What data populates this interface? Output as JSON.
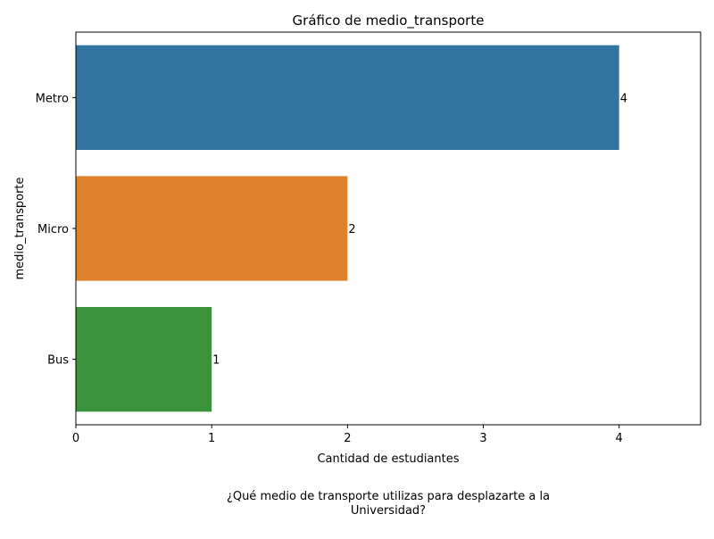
{
  "chart_data": {
    "type": "bar",
    "orientation": "horizontal",
    "title": "Gráfico de medio_transporte",
    "xlabel": "Cantidad de estudiantes",
    "ylabel": "medio_transporte",
    "categories": [
      "Metro",
      "Micro",
      "Bus"
    ],
    "values": [
      4,
      2,
      1
    ],
    "data_labels": [
      "4",
      "2",
      "1"
    ],
    "colors": [
      "#3274a1",
      "#e1812c",
      "#3a923a"
    ],
    "xlim": [
      0,
      4.6
    ],
    "xticks": [
      0,
      1,
      2,
      3,
      4
    ],
    "xtick_labels": [
      "0",
      "1",
      "2",
      "3",
      "4"
    ],
    "grid": false,
    "legend": "none"
  },
  "caption": {
    "line1": "¿Qué medio de transporte utilizas para desplazarte a la",
    "line2": "Universidad?"
  }
}
